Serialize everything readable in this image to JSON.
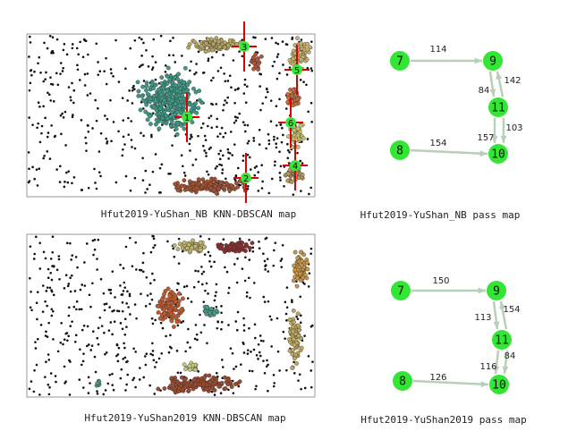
{
  "panels": [
    {
      "caption": "Hfut2019-YuShan_NB KNN-DBSCAN map",
      "cluster_labels": [
        "1",
        "2",
        "3",
        "4",
        "5",
        "6"
      ]
    },
    {
      "caption": "Hfut2019-YuShan2019 KNN-DBSCAN map"
    }
  ],
  "pass_maps": [
    {
      "caption": "Hfut2019-YuShan_NB pass map",
      "nodes": [
        "7",
        "9",
        "11",
        "8",
        "10"
      ],
      "edge_labels": [
        114,
        84,
        142,
        157,
        103,
        154
      ]
    },
    {
      "caption": "Hfut2019-YuShan2019 pass map",
      "nodes": [
        "7",
        "9",
        "11",
        "8",
        "10"
      ],
      "edge_labels": [
        150,
        113,
        154,
        116,
        84,
        126
      ]
    }
  ]
}
